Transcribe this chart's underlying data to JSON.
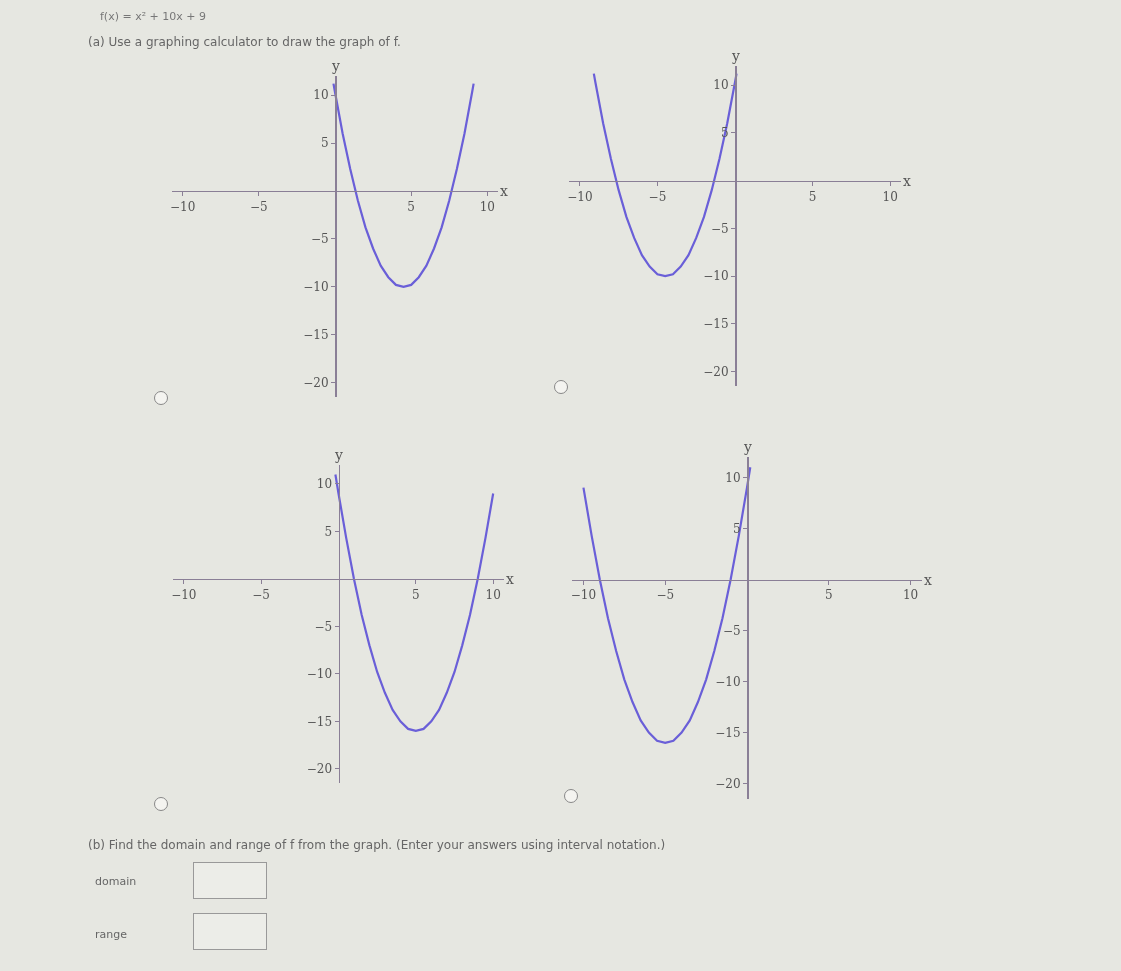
{
  "chart_data": [
    {
      "type": "line",
      "title": "f(x) = x² + 10x + 9",
      "subtitle": "(a) Use a graphing calculator to draw the graph of f.",
      "xlabel": "x",
      "ylabel": "y",
      "color": "#6a5fd8",
      "x": [
        -0.1,
        0,
        0.5,
        1,
        1.5,
        2,
        2.5,
        3,
        3.5,
        4,
        4.5,
        5,
        5.5,
        6,
        6.5,
        7,
        7.5,
        8,
        8.5,
        9,
        9.1
      ],
      "values": [
        11.2,
        10.3,
        6,
        2.3,
        -1,
        -3.8,
        -6,
        -7.8,
        -9,
        -9.8,
        -10,
        -9.8,
        -9,
        -7.8,
        -6,
        -3.8,
        -1,
        2.3,
        6,
        10.3,
        11.2
      ],
      "xlim": [
        -10.7,
        10.7
      ],
      "ylim": [
        -21.5,
        12
      ],
      "xticks": [
        -10,
        -5,
        5,
        10
      ],
      "yticks": [
        -20,
        -15,
        -10,
        -5,
        5,
        10
      ]
    },
    {
      "type": "line",
      "xlabel": "x",
      "ylabel": "y",
      "color": "#6a5fd8",
      "x": [
        -9.1,
        -9,
        -8.5,
        -8,
        -7.5,
        -7,
        -6.5,
        -6,
        -5.5,
        -5,
        -4.5,
        -4,
        -3.5,
        -3,
        -2.5,
        -2,
        -1.5,
        -1,
        -0.5,
        0,
        0.1
      ],
      "values": [
        11.2,
        10.3,
        6,
        2.3,
        -1,
        -3.8,
        -6,
        -7.8,
        -9,
        -9.8,
        -10,
        -9.8,
        -9,
        -7.8,
        -6,
        -3.8,
        -1,
        2.3,
        6,
        10.3,
        11.2
      ],
      "xlim": [
        -10.7,
        10.7
      ],
      "ylim": [
        -21.5,
        12
      ],
      "xticks": [
        -10,
        -5,
        5,
        10
      ],
      "yticks": [
        -20,
        -15,
        -10,
        -5,
        5,
        10
      ]
    },
    {
      "type": "line",
      "xlabel": "x",
      "ylabel": "y",
      "color": "#6a5fd8",
      "x": [
        -0.2,
        0,
        0.5,
        1,
        1.5,
        2,
        2.5,
        3,
        3.5,
        4,
        4.5,
        5,
        5.5,
        6,
        6.5,
        7,
        7.5,
        8,
        8.5,
        9,
        9.5,
        10
      ],
      "values": [
        11,
        9,
        4.3,
        0,
        -3.8,
        -7,
        -9.8,
        -12,
        -13.8,
        -15,
        -15.8,
        -16,
        -15.8,
        -15,
        -13.8,
        -12,
        -9.8,
        -7,
        -3.8,
        0,
        4.3,
        9
      ],
      "xlim": [
        -10.7,
        10.7
      ],
      "ylim": [
        -21.5,
        12
      ],
      "xticks": [
        -10,
        -5,
        5,
        10
      ],
      "yticks": [
        -20,
        -15,
        -10,
        -5,
        5,
        10
      ]
    },
    {
      "type": "line",
      "xlabel": "x",
      "ylabel": "y",
      "color": "#6a5fd8",
      "x": [
        -10,
        -9.5,
        -9,
        -8.5,
        -8,
        -7.5,
        -7,
        -6.5,
        -6,
        -5.5,
        -5,
        -4.5,
        -4,
        -3.5,
        -3,
        -2.5,
        -2,
        -1.5,
        -1,
        -0.5,
        0,
        0.2
      ],
      "values": [
        9,
        4.3,
        0,
        -3.8,
        -7,
        -9.8,
        -12,
        -13.8,
        -15,
        -15.8,
        -16,
        -15.8,
        -15,
        -13.8,
        -12,
        -9.8,
        -7,
        -3.8,
        0,
        4.3,
        9,
        11
      ],
      "xlim": [
        -10.7,
        10.7
      ],
      "ylim": [
        -21.5,
        12
      ],
      "xticks": [
        -10,
        -5,
        5,
        10
      ],
      "yticks": [
        -20,
        -15,
        -10,
        -5,
        5,
        10
      ],
      "annotations": [
        "(b) Find the domain and range of f from the graph. (Enter your answers using interval notation.)",
        "domain",
        "range"
      ]
    }
  ]
}
